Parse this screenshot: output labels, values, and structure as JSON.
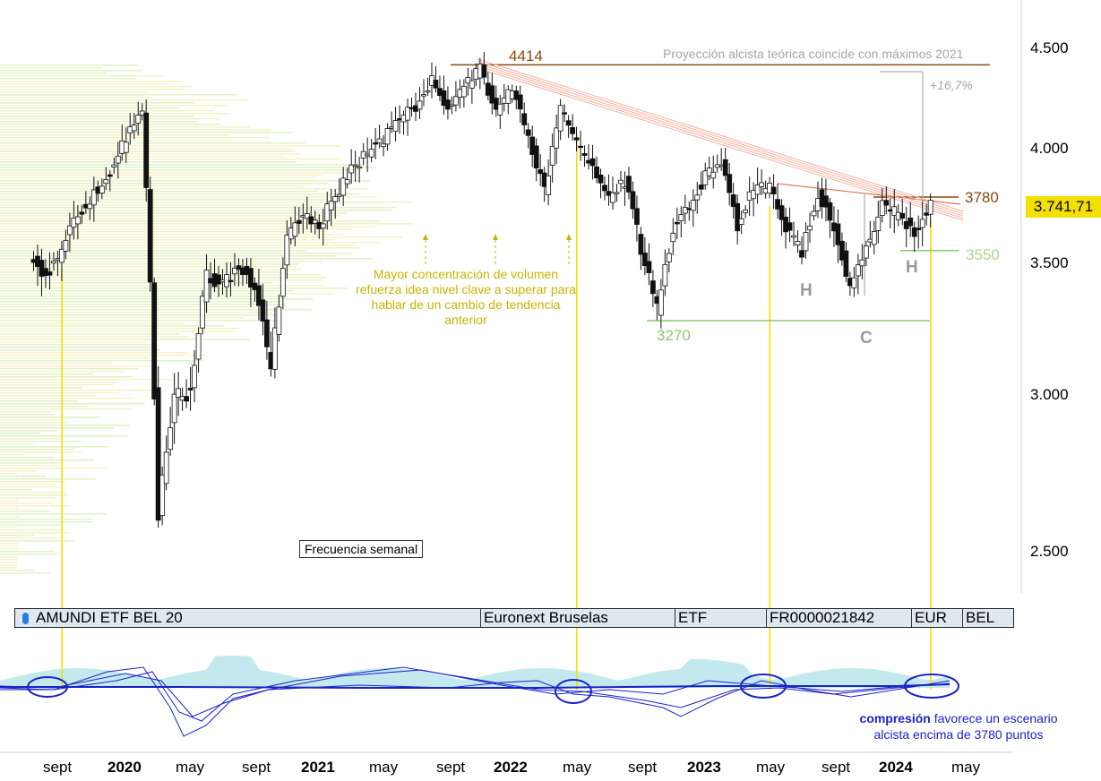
{
  "chart_data": {
    "type": "candlestick",
    "frequency_label": "Frecuencia semanal",
    "last_price_label": "3.741,71",
    "y_axis": {
      "scale": "log",
      "ticks": [
        "4.500",
        "4.000",
        "3.500",
        "3.000",
        "2.500"
      ],
      "ylim": [
        2350,
        4650
      ]
    },
    "x_axis": {
      "ticks": [
        {
          "label": "sept",
          "date": "2019-09",
          "year": false
        },
        {
          "label": "2020",
          "date": "2020-01",
          "year": true
        },
        {
          "label": "may",
          "date": "2020-05",
          "year": false
        },
        {
          "label": "sept",
          "date": "2020-09",
          "year": false
        },
        {
          "label": "2021",
          "date": "2021-01",
          "year": true
        },
        {
          "label": "may",
          "date": "2021-05",
          "year": false
        },
        {
          "label": "sept",
          "date": "2021-09",
          "year": false
        },
        {
          "label": "2022",
          "date": "2022-01",
          "year": true
        },
        {
          "label": "may",
          "date": "2022-05",
          "year": false
        },
        {
          "label": "sept",
          "date": "2022-09",
          "year": false
        },
        {
          "label": "2023",
          "date": "2023-01",
          "year": true
        },
        {
          "label": "may",
          "date": "2023-05",
          "year": false
        },
        {
          "label": "sept",
          "date": "2023-09",
          "year": false
        },
        {
          "label": "2024",
          "date": "2024-01",
          "year": true
        },
        {
          "label": "may",
          "date": "2024-05",
          "year": false
        }
      ]
    },
    "price_path": [
      [
        "2019-07",
        3540
      ],
      [
        "2019-08",
        3440
      ],
      [
        "2019-09",
        3560
      ],
      [
        "2019-10",
        3700
      ],
      [
        "2019-11",
        3800
      ],
      [
        "2019-12",
        3900
      ],
      [
        "2020-01",
        4050
      ],
      [
        "2020-02",
        4200
      ],
      [
        "2020-03",
        2600
      ],
      [
        "2020-04",
        3000
      ],
      [
        "2020-05",
        3000
      ],
      [
        "2020-06",
        3450
      ],
      [
        "2020-07",
        3400
      ],
      [
        "2020-08",
        3500
      ],
      [
        "2020-09",
        3400
      ],
      [
        "2020-10",
        3100
      ],
      [
        "2020-11",
        3600
      ],
      [
        "2020-12",
        3700
      ],
      [
        "2021-01",
        3660
      ],
      [
        "2021-02",
        3780
      ],
      [
        "2021-03",
        3900
      ],
      [
        "2021-04",
        3990
      ],
      [
        "2021-05",
        4050
      ],
      [
        "2021-06",
        4150
      ],
      [
        "2021-07",
        4200
      ],
      [
        "2021-08",
        4330
      ],
      [
        "2021-09",
        4200
      ],
      [
        "2021-10",
        4300
      ],
      [
        "2021-11",
        4390
      ],
      [
        "2021-12",
        4180
      ],
      [
        "2022-01",
        4300
      ],
      [
        "2022-02",
        4050
      ],
      [
        "2022-03",
        3800
      ],
      [
        "2022-04",
        4200
      ],
      [
        "2022-05",
        4020
      ],
      [
        "2022-06",
        3900
      ],
      [
        "2022-07",
        3780
      ],
      [
        "2022-08",
        3850
      ],
      [
        "2022-09",
        3560
      ],
      [
        "2022-10",
        3320
      ],
      [
        "2022-11",
        3650
      ],
      [
        "2022-12",
        3740
      ],
      [
        "2023-01",
        3880
      ],
      [
        "2023-02",
        3930
      ],
      [
        "2023-03",
        3660
      ],
      [
        "2023-04",
        3820
      ],
      [
        "2023-05",
        3820
      ],
      [
        "2023-06",
        3650
      ],
      [
        "2023-07",
        3550
      ],
      [
        "2023-08",
        3800
      ],
      [
        "2023-09",
        3650
      ],
      [
        "2023-10",
        3400
      ],
      [
        "2023-11",
        3560
      ],
      [
        "2023-12",
        3740
      ],
      [
        "2024-01",
        3700
      ],
      [
        "2024-02",
        3620
      ],
      [
        "2024-03",
        3742
      ]
    ],
    "levels": [
      {
        "label": "4414",
        "value": 4414,
        "color": "#8a4a12"
      },
      {
        "label": "3780",
        "value": 3780,
        "color": "#8a4a12"
      },
      {
        "label": "3550",
        "value": 3550,
        "color": "#a8d88a"
      },
      {
        "label": "3270",
        "value": 3270,
        "color": "#8cc870"
      }
    ],
    "pattern_labels": [
      "H",
      "C",
      "H"
    ],
    "projection_note": "Proyección alcista teórica coincide con máximos 2021",
    "projection_pct": "+16,7%",
    "volume_note": "Mayor concentración de volumen refuerza idea nivel clave a superar para hablar de un cambio de tendencia anterior",
    "compression_note": {
      "bold": "compresión",
      "rest_line1": " favorece un escenario",
      "line2": "alcista encima de 3780 puntos"
    }
  },
  "info_bar": {
    "name": "AMUNDI ETF BEL 20",
    "exchange": "Euronext Bruselas",
    "type": "ETF",
    "isin": "FR0000021842",
    "currency": "EUR",
    "country": "BEL"
  },
  "colors": {
    "candle_up": "#ffffff",
    "candle_down": "#111111",
    "resistance": "#8a4a12",
    "trendline": "#f4b4a4",
    "support": "#8cc870",
    "highlight": "#f4e000",
    "oscillator": "#1a22c8",
    "volume_profile": "#d8eeb8"
  }
}
